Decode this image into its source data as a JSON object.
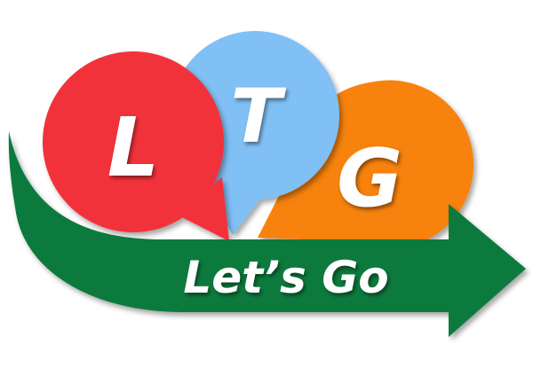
{
  "logo": {
    "letters": {
      "left": "L",
      "middle": "T",
      "right": "G"
    },
    "tagline": "Let’s Go"
  },
  "colors": {
    "red_circle": "#f2323a",
    "blue_circle": "#80c0f4",
    "orange_circle": "#f7820c",
    "arrow_green": "#0d7a3c",
    "text": "#ffffff"
  }
}
